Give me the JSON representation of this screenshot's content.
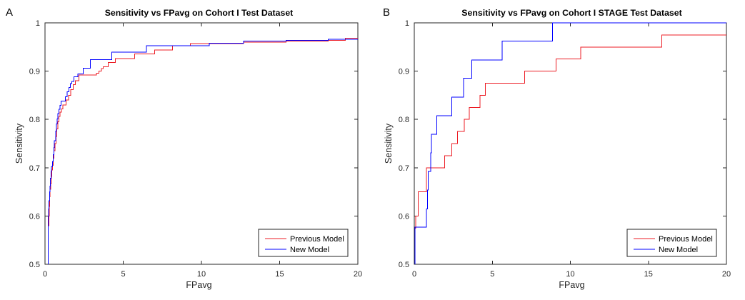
{
  "colors": {
    "background": "#FFFFFF",
    "axis": "#262626",
    "title": "#000000",
    "previous_model": "#EC1C24",
    "new_model": "#0000FF"
  },
  "chart_data": [
    {
      "type": "line",
      "subtype": "step-froc-curve",
      "panel_label": "A",
      "title": "Sensitivity vs FPavg on Cohort I Test Dataset",
      "xlabel": "FPavg",
      "ylabel": "Sensitivity",
      "xlim": [
        0,
        20
      ],
      "ylim": [
        0.5,
        1.0
      ],
      "xticks": [
        0,
        5,
        10,
        15,
        20
      ],
      "xtick_labels": [
        "0",
        "5",
        "10",
        "15",
        "20"
      ],
      "yticks": [
        0.5,
        0.6,
        0.7,
        0.8,
        0.9,
        1.0
      ],
      "ytick_labels": [
        "0.5",
        "0.6",
        "0.7",
        "0.8",
        "0.9",
        "1"
      ],
      "grid": false,
      "legend": {
        "position": "southeast",
        "border": true,
        "entries": [
          "Previous Model",
          "New Model"
        ]
      },
      "series": [
        {
          "name": "Previous Model",
          "color": "#EC1C24",
          "start_y": 0.5,
          "points": [
            [
              0.2,
              0.58
            ],
            [
              0.24,
              0.6
            ],
            [
              0.27,
              0.62
            ],
            [
              0.3,
              0.64
            ],
            [
              0.33,
              0.655
            ],
            [
              0.36,
              0.668
            ],
            [
              0.4,
              0.682
            ],
            [
              0.44,
              0.695
            ],
            [
              0.48,
              0.705
            ],
            [
              0.53,
              0.72
            ],
            [
              0.58,
              0.735
            ],
            [
              0.63,
              0.75
            ],
            [
              0.7,
              0.765
            ],
            [
              0.76,
              0.78
            ],
            [
              0.82,
              0.795
            ],
            [
              0.88,
              0.806
            ],
            [
              0.95,
              0.815
            ],
            [
              1.05,
              0.822
            ],
            [
              1.15,
              0.83
            ],
            [
              1.35,
              0.84
            ],
            [
              1.5,
              0.85
            ],
            [
              1.65,
              0.862
            ],
            [
              1.8,
              0.872
            ],
            [
              1.95,
              0.88
            ],
            [
              2.18,
              0.892
            ],
            [
              3.28,
              0.896
            ],
            [
              3.45,
              0.9
            ],
            [
              3.6,
              0.905
            ],
            [
              3.73,
              0.909
            ],
            [
              4.04,
              0.918
            ],
            [
              4.5,
              0.926
            ],
            [
              5.72,
              0.936
            ],
            [
              7.01,
              0.944
            ],
            [
              8.16,
              0.953
            ],
            [
              9.3,
              0.957
            ],
            [
              12.7,
              0.96
            ],
            [
              15.4,
              0.962
            ],
            [
              18.1,
              0.964
            ],
            [
              19.2,
              0.968
            ]
          ]
        },
        {
          "name": "New Model",
          "color": "#0000FF",
          "start_y": 0.5,
          "points": [
            [
              0.2,
              0.6
            ],
            [
              0.23,
              0.615
            ],
            [
              0.26,
              0.632
            ],
            [
              0.29,
              0.65
            ],
            [
              0.32,
              0.662
            ],
            [
              0.35,
              0.678
            ],
            [
              0.38,
              0.692
            ],
            [
              0.42,
              0.703
            ],
            [
              0.48,
              0.713
            ],
            [
              0.52,
              0.727
            ],
            [
              0.56,
              0.742
            ],
            [
              0.6,
              0.756
            ],
            [
              0.68,
              0.776
            ],
            [
              0.73,
              0.791
            ],
            [
              0.77,
              0.801
            ],
            [
              0.82,
              0.812
            ],
            [
              0.9,
              0.821
            ],
            [
              0.97,
              0.829
            ],
            [
              1.02,
              0.838
            ],
            [
              1.3,
              0.847
            ],
            [
              1.42,
              0.857
            ],
            [
              1.53,
              0.866
            ],
            [
              1.62,
              0.874
            ],
            [
              1.72,
              0.879
            ],
            [
              1.85,
              0.888
            ],
            [
              2.1,
              0.894
            ],
            [
              2.44,
              0.906
            ],
            [
              2.9,
              0.924
            ],
            [
              4.27,
              0.939
            ],
            [
              6.48,
              0.953
            ],
            [
              10.5,
              0.958
            ],
            [
              12.7,
              0.962
            ],
            [
              15.4,
              0.964
            ],
            [
              18.1,
              0.966
            ]
          ]
        }
      ]
    },
    {
      "type": "line",
      "subtype": "step-froc-curve",
      "panel_label": "B",
      "title": "Sensitivity vs FPavg on Cohort I STAGE Test Dataset",
      "xlabel": "FPavg",
      "ylabel": "Sensitivity",
      "xlim": [
        0,
        20
      ],
      "ylim": [
        0.5,
        1.0
      ],
      "xticks": [
        0,
        5,
        10,
        15,
        20
      ],
      "xtick_labels": [
        "0",
        "5",
        "10",
        "15",
        "20"
      ],
      "yticks": [
        0.5,
        0.6,
        0.7,
        0.8,
        0.9,
        1.0
      ],
      "ytick_labels": [
        "0.5",
        "0.6",
        "0.7",
        "0.8",
        "0.9",
        "1"
      ],
      "grid": false,
      "legend": {
        "position": "southeast",
        "border": true,
        "entries": [
          "Previous Model",
          "New Model"
        ]
      },
      "series": [
        {
          "name": "Previous Model",
          "color": "#EC1C24",
          "start_y": 0.5,
          "points": [
            [
              0.05,
              0.575
            ],
            [
              0.1,
              0.6
            ],
            [
              0.25,
              0.65
            ],
            [
              0.78,
              0.7
            ],
            [
              1.95,
              0.725
            ],
            [
              2.4,
              0.75
            ],
            [
              2.78,
              0.775
            ],
            [
              3.2,
              0.8
            ],
            [
              3.53,
              0.825
            ],
            [
              4.2,
              0.85
            ],
            [
              4.55,
              0.875
            ],
            [
              7.06,
              0.9
            ],
            [
              9.08,
              0.925
            ],
            [
              10.66,
              0.95
            ],
            [
              15.85,
              0.975
            ]
          ]
        },
        {
          "name": "New Model",
          "color": "#0000FF",
          "start_y": 0.5,
          "points": [
            [
              0.05,
              0.577
            ],
            [
              0.78,
              0.615
            ],
            [
              0.85,
              0.654
            ],
            [
              0.9,
              0.692
            ],
            [
              1.05,
              0.731
            ],
            [
              1.1,
              0.769
            ],
            [
              1.43,
              0.808
            ],
            [
              2.4,
              0.846
            ],
            [
              3.15,
              0.885
            ],
            [
              3.68,
              0.923
            ],
            [
              5.63,
              0.962
            ],
            [
              8.86,
              1.0
            ]
          ]
        }
      ]
    }
  ]
}
